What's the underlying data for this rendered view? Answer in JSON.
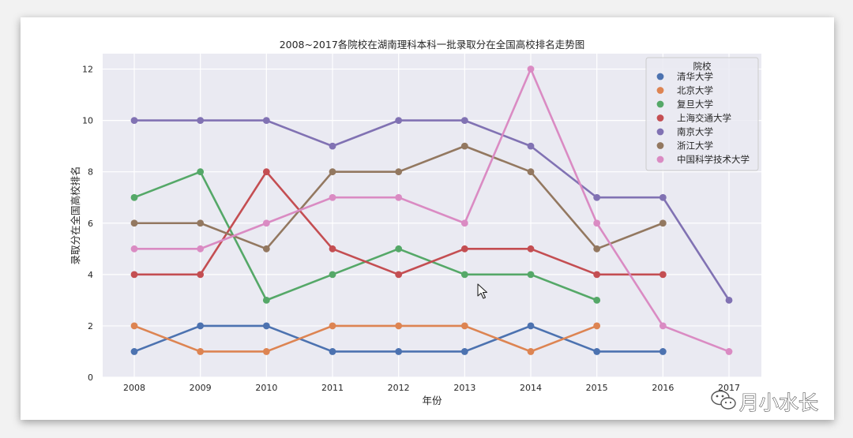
{
  "chart_data": {
    "type": "line",
    "title": "2008~2017各院校在湖南理科本科一批录取分在全国高校排名走势图",
    "xlabel": "年份",
    "ylabel": "录取分在全国高校排名",
    "categories": [
      "2008",
      "2009",
      "2010",
      "2011",
      "2012",
      "2013",
      "2014",
      "2015",
      "2016",
      "2017"
    ],
    "yticks": [
      0,
      2,
      4,
      6,
      8,
      10,
      12
    ],
    "ylim": [
      0,
      12.6
    ],
    "grid": true,
    "legend": {
      "title": "院校",
      "placement": "top-right"
    },
    "series": [
      {
        "name": "清华大学",
        "color": "#4c72b0",
        "values": [
          1,
          2,
          2,
          1,
          1,
          1,
          2,
          1,
          1,
          null
        ]
      },
      {
        "name": "北京大学",
        "color": "#dd8452",
        "values": [
          2,
          1,
          1,
          2,
          2,
          2,
          1,
          2,
          null,
          null
        ]
      },
      {
        "name": "复旦大学",
        "color": "#55a868",
        "values": [
          7,
          8,
          3,
          4,
          5,
          4,
          4,
          3,
          null,
          null
        ]
      },
      {
        "name": "上海交通大学",
        "color": "#c44e52",
        "values": [
          4,
          4,
          8,
          5,
          4,
          5,
          5,
          4,
          4,
          null
        ]
      },
      {
        "name": "南京大学",
        "color": "#8172b3",
        "values": [
          10,
          10,
          10,
          9,
          10,
          10,
          9,
          7,
          7,
          3
        ]
      },
      {
        "name": "浙江大学",
        "color": "#937860",
        "values": [
          6,
          6,
          5,
          8,
          8,
          9,
          8,
          5,
          6,
          null
        ]
      },
      {
        "name": "中国科学技术大学",
        "color": "#da8bc3",
        "values": [
          5,
          5,
          6,
          7,
          7,
          6,
          12,
          6,
          2,
          1
        ]
      }
    ]
  },
  "watermark": {
    "text": "月小水长",
    "icon": "wechat-icon"
  },
  "cursor": {
    "icon": "mouse-pointer-icon"
  }
}
